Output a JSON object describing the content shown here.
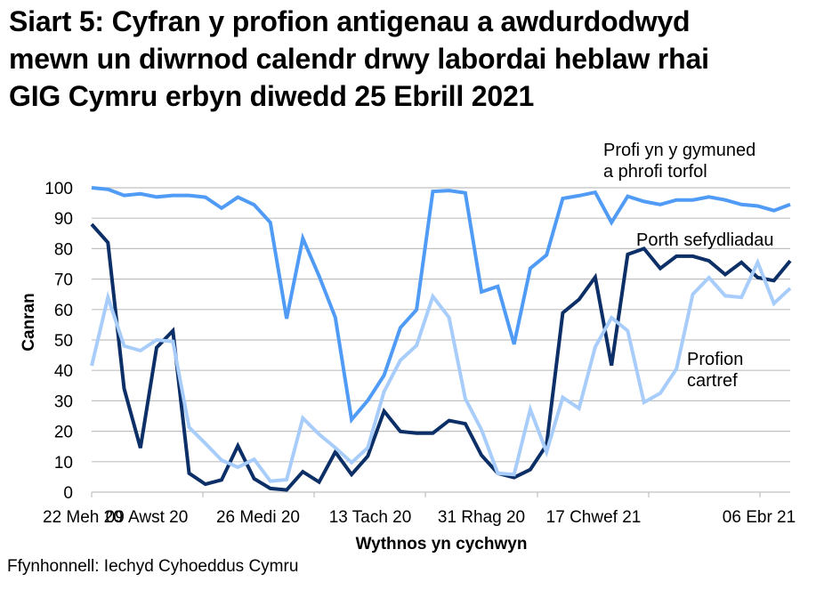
{
  "title": {
    "line1": "Siart 5: Cyfran y profion antigenau a awdurdodwyd",
    "line2": "mewn un diwrnod calendr drwy labordai heblaw rhai",
    "line3": "GIG Cymru erbyn diwedd 25 Ebrill 2021"
  },
  "source": "Ffynhonnell: Iechyd Cyhoeddus Cymru",
  "colors": {
    "community": "#4f9bf5",
    "organisations": "#0b2f66",
    "home": "#a8cdfa",
    "grid": "#c0c0c0"
  },
  "chart_data": {
    "type": "line",
    "title": "Siart 5: Cyfran y profion antigenau a awdurdodwyd mewn un diwrnod calendr drwy labordai heblaw rhai GIG Cymru erbyn diwedd 25 Ebrill 2021",
    "xlabel": "Wythnos yn cychwyn",
    "ylabel": "Canran",
    "ylim": [
      0,
      100
    ],
    "yticks": [
      0,
      10,
      20,
      30,
      40,
      50,
      60,
      70,
      80,
      90,
      100
    ],
    "grid": true,
    "legend_position": "inline labels",
    "x_tick_labels": [
      {
        "index": 0,
        "label": "22 Meh 20"
      },
      {
        "index": 7,
        "label": "09 Awst 20"
      },
      {
        "index": 14,
        "label": "26 Medi 20"
      },
      {
        "index": 21,
        "label": "13 Tach 20"
      },
      {
        "index": 28,
        "label": "31 Rhag 20"
      },
      {
        "index": 35,
        "label": "17 Chwef 21"
      },
      {
        "index": 42,
        "label": "06 Ebr 21"
      }
    ],
    "n_points": 44,
    "series": [
      {
        "name": "Profi yn y gymuned a phrofi torfol",
        "label_lines": [
          "Profi yn y gymuned",
          "a phrofi torfol"
        ],
        "color": "#4f9bf5",
        "values": [
          100,
          99.5,
          97.5,
          98,
          97,
          97.5,
          97.5,
          96.9,
          93.3,
          96.9,
          94.4,
          88.6,
          57,
          83.4,
          71,
          57.4,
          23.8,
          30.1,
          38.4,
          54,
          59.9,
          98.8,
          99.1,
          98.3,
          65.8,
          67.6,
          48.6,
          73.5,
          77.9,
          96.5,
          97.4,
          98.5,
          88.6,
          97.2,
          95.5,
          94.5,
          96,
          96,
          97,
          96,
          94.5,
          94,
          92.5,
          94.5
        ]
      },
      {
        "name": "Porth sefydliadau",
        "label_lines": [
          "Porth sefydliadau"
        ],
        "color": "#0b2f66",
        "values": [
          88,
          82,
          34,
          14.5,
          47.5,
          53,
          6.2,
          2.6,
          4,
          15.2,
          4.4,
          1.2,
          0.7,
          6.7,
          3.3,
          13.2,
          5.8,
          11.8,
          26.6,
          19.9,
          19.4,
          19.4,
          23.5,
          22.5,
          12.1,
          6.2,
          4.8,
          7.4,
          15.5,
          58.9,
          63.3,
          70.6,
          41.6,
          78.1,
          80,
          73.5,
          77.5,
          77.5,
          76,
          71.5,
          75.5,
          70.5,
          69.5,
          76
        ]
      },
      {
        "name": "Profion cartref",
        "label_lines": [
          "Profion",
          "cartref"
        ],
        "color": "#a8cdfa",
        "values": [
          41.5,
          64,
          48,
          46.5,
          50,
          49.5,
          21.3,
          16,
          10.5,
          8.2,
          10.8,
          3.6,
          4.1,
          24.3,
          19,
          14.6,
          9.7,
          14.6,
          33,
          43.3,
          48.2,
          64.3,
          57.4,
          30.7,
          20.5,
          6.2,
          5.8,
          27.2,
          13.2,
          31.1,
          27.5,
          47.7,
          57.3,
          53,
          29.5,
          32.5,
          40.5,
          65,
          70.5,
          64.5,
          64,
          75.5,
          62,
          67
        ]
      }
    ]
  }
}
